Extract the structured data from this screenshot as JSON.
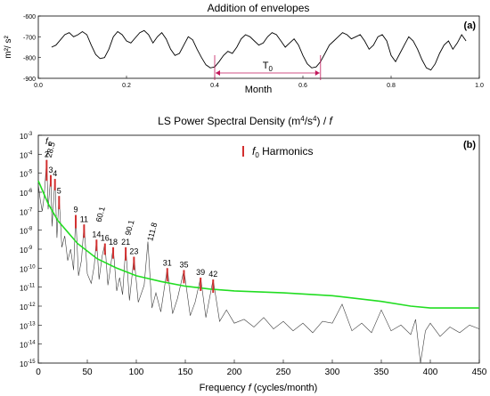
{
  "chart_data": [
    {
      "type": "line",
      "title": "Addition of envelopes",
      "panel_label": "(a)",
      "xlabel": "Month",
      "ylabel": "m²/ s²",
      "xlim": [
        0,
        1
      ],
      "ylim": [
        -900,
        -600
      ],
      "x_ticks": [
        "0.0",
        "0.2",
        "0.4",
        "0.6",
        "0.8",
        "1.0"
      ],
      "y_ticks": [
        "-600",
        "-700",
        "-800",
        "-900"
      ],
      "period_annotation": {
        "label": "T",
        "label_sub": "0",
        "x_start": 0.4,
        "x_end": 0.64
      },
      "series": [
        {
          "color": "#000000",
          "x": [
            0.03,
            0.04,
            0.05,
            0.06,
            0.07,
            0.08,
            0.09,
            0.1,
            0.11,
            0.12,
            0.13,
            0.14,
            0.15,
            0.16,
            0.17,
            0.18,
            0.19,
            0.2,
            0.21,
            0.22,
            0.23,
            0.24,
            0.25,
            0.26,
            0.27,
            0.28,
            0.29,
            0.3,
            0.31,
            0.32,
            0.33,
            0.34,
            0.35,
            0.36,
            0.37,
            0.38,
            0.39,
            0.4,
            0.41,
            0.42,
            0.43,
            0.44,
            0.45,
            0.46,
            0.47,
            0.48,
            0.49,
            0.5,
            0.51,
            0.52,
            0.53,
            0.54,
            0.55,
            0.56,
            0.57,
            0.58,
            0.59,
            0.6,
            0.61,
            0.62,
            0.63,
            0.64,
            0.65,
            0.66,
            0.67,
            0.68,
            0.69,
            0.7,
            0.71,
            0.72,
            0.73,
            0.74,
            0.75,
            0.76,
            0.77,
            0.78,
            0.79,
            0.8,
            0.81,
            0.82,
            0.83,
            0.84,
            0.85,
            0.86,
            0.87,
            0.88,
            0.89,
            0.9,
            0.91,
            0.92,
            0.93,
            0.94,
            0.95,
            0.96,
            0.97
          ],
          "values": [
            -750,
            -740,
            -715,
            -690,
            -680,
            -700,
            -690,
            -675,
            -690,
            -740,
            -785,
            -805,
            -800,
            -760,
            -700,
            -675,
            -690,
            -720,
            -730,
            -705,
            -680,
            -670,
            -690,
            -730,
            -700,
            -680,
            -710,
            -760,
            -790,
            -780,
            -740,
            -700,
            -715,
            -760,
            -800,
            -835,
            -850,
            -845,
            -820,
            -790,
            -770,
            -780,
            -750,
            -710,
            -690,
            -700,
            -720,
            -740,
            -730,
            -700,
            -680,
            -690,
            -720,
            -750,
            -730,
            -710,
            -740,
            -790,
            -830,
            -850,
            -845,
            -820,
            -780,
            -740,
            -720,
            -700,
            -680,
            -690,
            -710,
            -700,
            -690,
            -720,
            -760,
            -740,
            -700,
            -690,
            -720,
            -790,
            -820,
            -780,
            -740,
            -700,
            -720,
            -760,
            -810,
            -850,
            -860,
            -830,
            -780,
            -740,
            -720,
            -760,
            -730,
            -690,
            -720
          ]
        }
      ]
    },
    {
      "type": "line",
      "title": "LS Power Spectral Density (m",
      "title_sup": "4",
      "title_mid": "/s",
      "title_sup2": "4",
      "title_end": ") / ",
      "title_f": "f",
      "panel_label": "(b)",
      "xlabel": "Frequency ",
      "xlabel_f": "f",
      "xlabel_end": " (cycles/month)",
      "xlim": [
        0,
        450
      ],
      "ylim_log10": [
        -15,
        -3
      ],
      "x_ticks": [
        "0",
        "50",
        "100",
        "150",
        "200",
        "250",
        "300",
        "350",
        "400",
        "450"
      ],
      "y_tick_base": "10",
      "y_tick_exponents": [
        "-3",
        "-4",
        "-5",
        "-6",
        "-7",
        "-8",
        "-9",
        "-10",
        "-11",
        "-12",
        "-13",
        "-14",
        "-15"
      ],
      "legend": {
        "position": "top-center",
        "marker_color": "#d32f2f",
        "prefix": "f",
        "prefix_sub": "0",
        "label": " Harmonics"
      },
      "f0_label": {
        "text": "f",
        "sub": "0"
      },
      "harmonics": [
        {
          "n": 2,
          "x": 8.5,
          "top_log": -4.3,
          "bottom_log": -5.4
        },
        {
          "n": 3,
          "x": 12.7,
          "top_log": -5.1,
          "bottom_log": -5.7
        },
        {
          "n": 4,
          "x": 17.0,
          "top_log": -5.3,
          "bottom_log": -5.9
        },
        {
          "n": 5,
          "x": 21.2,
          "top_log": -6.2,
          "bottom_log": -6.9
        },
        {
          "n": 9,
          "x": 38.2,
          "top_log": -7.2,
          "bottom_log": -7.9
        },
        {
          "n": 11,
          "x": 46.7,
          "top_log": -7.7,
          "bottom_log": -8.4
        },
        {
          "n": 14,
          "x": 59.4,
          "top_log": -8.5,
          "bottom_log": -9.1
        },
        {
          "n": 16,
          "x": 68.0,
          "top_log": -8.7,
          "bottom_log": -9.3
        },
        {
          "n": 18,
          "x": 76.4,
          "top_log": -8.9,
          "bottom_log": -9.5
        },
        {
          "n": 21,
          "x": 89.2,
          "top_log": -8.9,
          "bottom_log": -9.6
        },
        {
          "n": 23,
          "x": 97.6,
          "top_log": -9.4,
          "bottom_log": -10.1
        },
        {
          "n": 31,
          "x": 131.6,
          "top_log": -10.0,
          "bottom_log": -10.7
        },
        {
          "n": 35,
          "x": 148.6,
          "top_log": -10.1,
          "bottom_log": -10.8
        },
        {
          "n": 39,
          "x": 165.6,
          "top_log": -10.5,
          "bottom_log": -11.2
        },
        {
          "n": 42,
          "x": 178.4,
          "top_log": -10.6,
          "bottom_log": -11.3
        }
      ],
      "annotations": [
        {
          "text": "28.5",
          "x": 8.5,
          "log_y": -4.2,
          "color": "#3b3b98"
        },
        {
          "text": "60.1",
          "x": 59.4,
          "log_y": -7.6,
          "color": "#3b3b98"
        },
        {
          "text": "90.1",
          "x": 89.2,
          "log_y": -8.3,
          "color": "#3b3b98"
        },
        {
          "text": "111.8",
          "x": 111.8,
          "log_y": -8.6,
          "color": "#3b3b98"
        }
      ],
      "series": [
        {
          "color": "#22dd22",
          "x": [
            0,
            5,
            10,
            20,
            30,
            40,
            50,
            60,
            80,
            100,
            125,
            150,
            175,
            200,
            250,
            300,
            350,
            380,
            400,
            420,
            450
          ],
          "log_values": [
            -5.4,
            -6.0,
            -6.6,
            -7.5,
            -8.1,
            -8.7,
            -9.1,
            -9.5,
            -10.0,
            -10.4,
            -10.7,
            -10.95,
            -11.1,
            -11.2,
            -11.3,
            -11.45,
            -11.75,
            -12.0,
            -12.1,
            -12.1,
            -12.1
          ]
        },
        {
          "color": "#3c3c3c",
          "x": [
            0,
            2,
            4,
            6,
            8.5,
            10,
            12.7,
            14,
            17,
            19,
            21.2,
            24,
            27,
            30,
            33,
            36,
            38.2,
            41,
            44,
            46.7,
            50,
            54,
            57,
            59.4,
            62,
            65,
            68,
            71,
            73,
            76.4,
            80,
            83,
            86,
            89.2,
            93,
            97.6,
            102,
            108,
            111.8,
            116,
            120,
            125,
            131.6,
            137,
            142,
            148.6,
            155,
            160,
            165.6,
            171,
            178.4,
            185,
            192,
            200,
            210,
            220,
            230,
            240,
            250,
            260,
            270,
            280,
            290,
            300,
            310,
            320,
            330,
            340,
            350,
            360,
            370,
            380,
            385,
            390,
            395,
            400,
            410,
            420,
            430,
            440,
            450
          ],
          "log_values": [
            -5.6,
            -6.4,
            -7.0,
            -6.2,
            -4.3,
            -6.9,
            -5.1,
            -7.8,
            -5.3,
            -8.4,
            -6.2,
            -8.9,
            -8.3,
            -9.6,
            -9.0,
            -10.1,
            -7.2,
            -10.4,
            -9.6,
            -7.7,
            -10.3,
            -10.8,
            -9.9,
            -8.5,
            -10.6,
            -9.4,
            -8.7,
            -10.9,
            -10.2,
            -8.9,
            -11.2,
            -10.5,
            -11.4,
            -8.9,
            -11.7,
            -9.4,
            -11.8,
            -10.9,
            -8.6,
            -12.1,
            -11.3,
            -12.3,
            -10.0,
            -12.4,
            -11.6,
            -10.1,
            -12.5,
            -11.8,
            -10.5,
            -12.6,
            -10.6,
            -12.8,
            -12.2,
            -12.9,
            -12.7,
            -13.1,
            -12.6,
            -13.2,
            -12.8,
            -13.3,
            -12.9,
            -13.4,
            -12.8,
            -12.9,
            -11.9,
            -13.3,
            -12.9,
            -13.4,
            -12.2,
            -13.3,
            -13.0,
            -13.5,
            -12.7,
            -15.0,
            -13.3,
            -12.9,
            -13.6,
            -13.1,
            -13.4,
            -13.0,
            -13.2
          ]
        }
      ]
    }
  ]
}
